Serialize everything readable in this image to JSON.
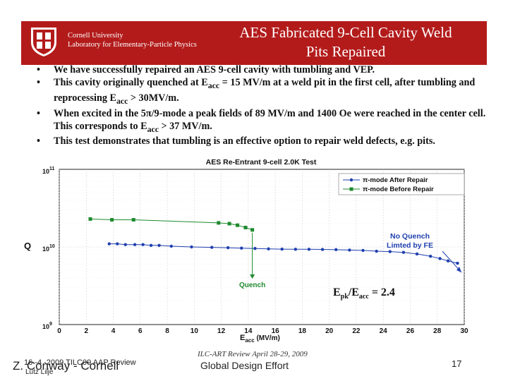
{
  "slide": {
    "header": {
      "university": "Cornell University",
      "lab": "Laboratory for Elementary-Particle Physics",
      "title_line1": "AES Fabricated 9-Cell Cavity Weld",
      "title_line2": "Pits Repaired"
    },
    "bullets": [
      {
        "text": "We have successfully repaired an AES 9-cell cavity with tumbling and VEP."
      },
      {
        "text": "This cavity originally quenched at E",
        "sub": "acc",
        "tail": " = 15 MV/m at a weld pit in the first cell, after tumbling and reprocessing E",
        "sub2": "acc",
        "tail2": " > 30MV/m."
      },
      {
        "text": "When excited in the 5π/9-mode a peak fields of 89 MV/m and 1400 Oe were reached in the center cell.  This corresponds to E",
        "sub": "acc",
        "tail": " > 37 MV/m."
      },
      {
        "text": "This test demonstrates that tumbling is an effective option to repair weld defects, e.g. pits."
      }
    ],
    "footer": {
      "date_review": "16 -4 -2009 TILC09 AAP  Review",
      "author_big": "Z. Conway - Cornell",
      "author_small": "Lutz Lilje",
      "conference": "ILC-ART Review April 28-29, 2009",
      "center": "Global Design Effort",
      "page": "17"
    },
    "colors": {
      "header_bg": "#b31b1b",
      "after": "#1f3fae",
      "before": "#1e8a2e",
      "annotation": "#1f3fae"
    }
  },
  "chart_data": {
    "type": "scatter",
    "title": "AES Re-Entrant 9-cell 2.0K Test",
    "xlabel": "E",
    "xlabel_sub": "acc",
    "xlabel_tail": " (MV/m)",
    "ylabel": "Q",
    "xlim": [
      0,
      30
    ],
    "ylim_log10": [
      9,
      11
    ],
    "x_ticks": [
      0,
      2,
      4,
      6,
      8,
      10,
      12,
      14,
      16,
      18,
      20,
      22,
      24,
      26,
      28,
      30
    ],
    "y_ticks": [
      {
        "value": 9,
        "label": "10",
        "sup": "9"
      },
      {
        "value": 10,
        "label": "10",
        "sup": "10"
      },
      {
        "value": 11,
        "label": "10",
        "sup": "11"
      }
    ],
    "legend": [
      {
        "name": "π-mode After Repair",
        "series": "after"
      },
      {
        "name": "π-mode Before Repair",
        "series": "before"
      }
    ],
    "series": [
      {
        "name": "π-mode Before Repair",
        "key": "before",
        "x": [
          2.3,
          3.9,
          5.5,
          11.8,
          12.6,
          13.2,
          13.8,
          14.3
        ],
        "log_q": [
          10.36,
          10.35,
          10.35,
          10.31,
          10.3,
          10.28,
          10.25,
          10.22
        ]
      },
      {
        "name": "π-mode After Repair",
        "key": "after",
        "x": [
          3.7,
          4.3,
          4.9,
          5.6,
          6.2,
          6.8,
          7.4,
          8.3,
          9.8,
          11.3,
          12.5,
          13.5,
          14.5,
          15.5,
          16.5,
          17.5,
          18.5,
          19.5,
          20.5,
          21.5,
          22.5,
          23.5,
          24.5,
          25.5,
          26.5,
          27.5,
          28.2,
          28.8,
          29.5
        ],
        "log_q": [
          10.04,
          10.04,
          10.03,
          10.03,
          10.03,
          10.02,
          10.02,
          10.01,
          10.0,
          9.995,
          9.99,
          9.985,
          9.98,
          9.975,
          9.972,
          9.97,
          9.97,
          9.968,
          9.965,
          9.96,
          9.955,
          9.945,
          9.94,
          9.93,
          9.91,
          9.88,
          9.85,
          9.82,
          9.79
        ]
      }
    ],
    "annotations": {
      "quench": "Quench",
      "no_quench_line1": "No Quench",
      "no_quench_line2": "Limted by FE",
      "epk_ratio": "E",
      "epk_sub": "pk",
      "eacc_sub": "acc",
      "epk_value": " = 2.4",
      "epk_slash": "/E"
    }
  }
}
